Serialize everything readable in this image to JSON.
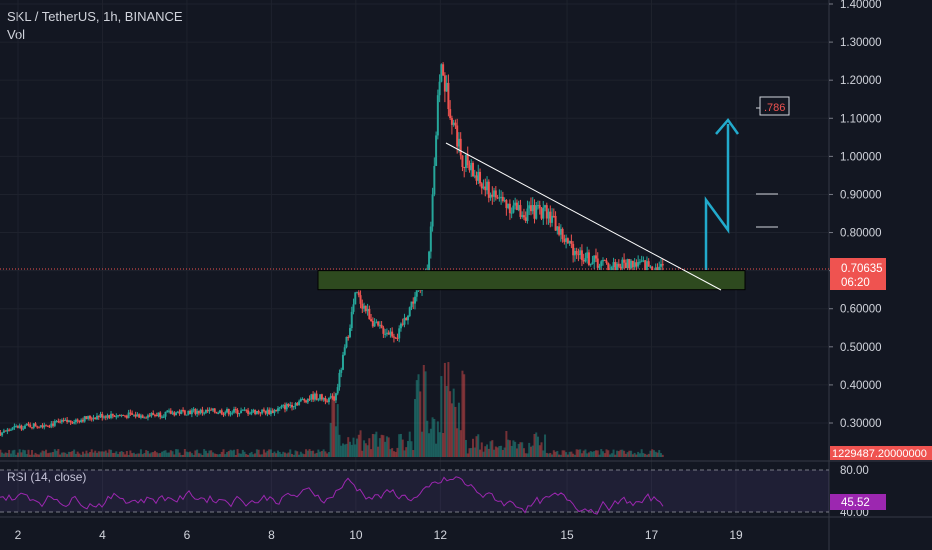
{
  "header": {
    "title": "SKL / TetherUS, 1h, BINANCE",
    "indicator": "Vol"
  },
  "rsi": {
    "label": "RSI (14, close)",
    "value_label": "45.52",
    "upper": "80.00",
    "lower": "40.00"
  },
  "price_tag": {
    "price": "0.70635",
    "countdown": "06:20"
  },
  "volume_tag": {
    "value": "1229487.20000000"
  },
  "annotation": {
    "fib_label": ".786"
  },
  "colors": {
    "up": "#26a69a",
    "down": "#ef5350",
    "zone": "#2e4a1f",
    "arrow": "#22aacc",
    "rsi_line": "#9c27b0",
    "price_tag": "#ef5350"
  },
  "chart_data": {
    "type": "candlestick",
    "title": "SKL / TetherUS, 1h, BINANCE",
    "x_ticks": [
      "2",
      "4",
      "6",
      "8",
      "10",
      "12",
      "15",
      "17",
      "19"
    ],
    "y_ticks": [
      "1.40000",
      "1.30000",
      "1.20000",
      "1.10000",
      "1.00000",
      "0.90000",
      "0.80000",
      "0.70000",
      "0.60000",
      "0.50000",
      "0.40000",
      "0.30000"
    ],
    "ylim": [
      0.27,
      1.4
    ],
    "series": [
      {
        "name": "price",
        "x": [
          1,
          2,
          3,
          4,
          5,
          6,
          7,
          8,
          9,
          9.5,
          10,
          10.5,
          11,
          11.3,
          11.7,
          12,
          12.5,
          13,
          13.5,
          14,
          14.5,
          15,
          15.5,
          16,
          16.5,
          17,
          17.3
        ],
        "y": [
          0.25,
          0.29,
          0.3,
          0.32,
          0.32,
          0.33,
          0.33,
          0.33,
          0.37,
          0.36,
          0.64,
          0.55,
          0.53,
          0.61,
          0.7,
          1.24,
          1.0,
          0.92,
          0.88,
          0.85,
          0.86,
          0.77,
          0.73,
          0.71,
          0.72,
          0.71,
          0.706
        ]
      }
    ],
    "rsi_ticks": [
      "80.00",
      "40.00"
    ],
    "support_zone": [
      0.65,
      0.7
    ],
    "grid": true
  }
}
